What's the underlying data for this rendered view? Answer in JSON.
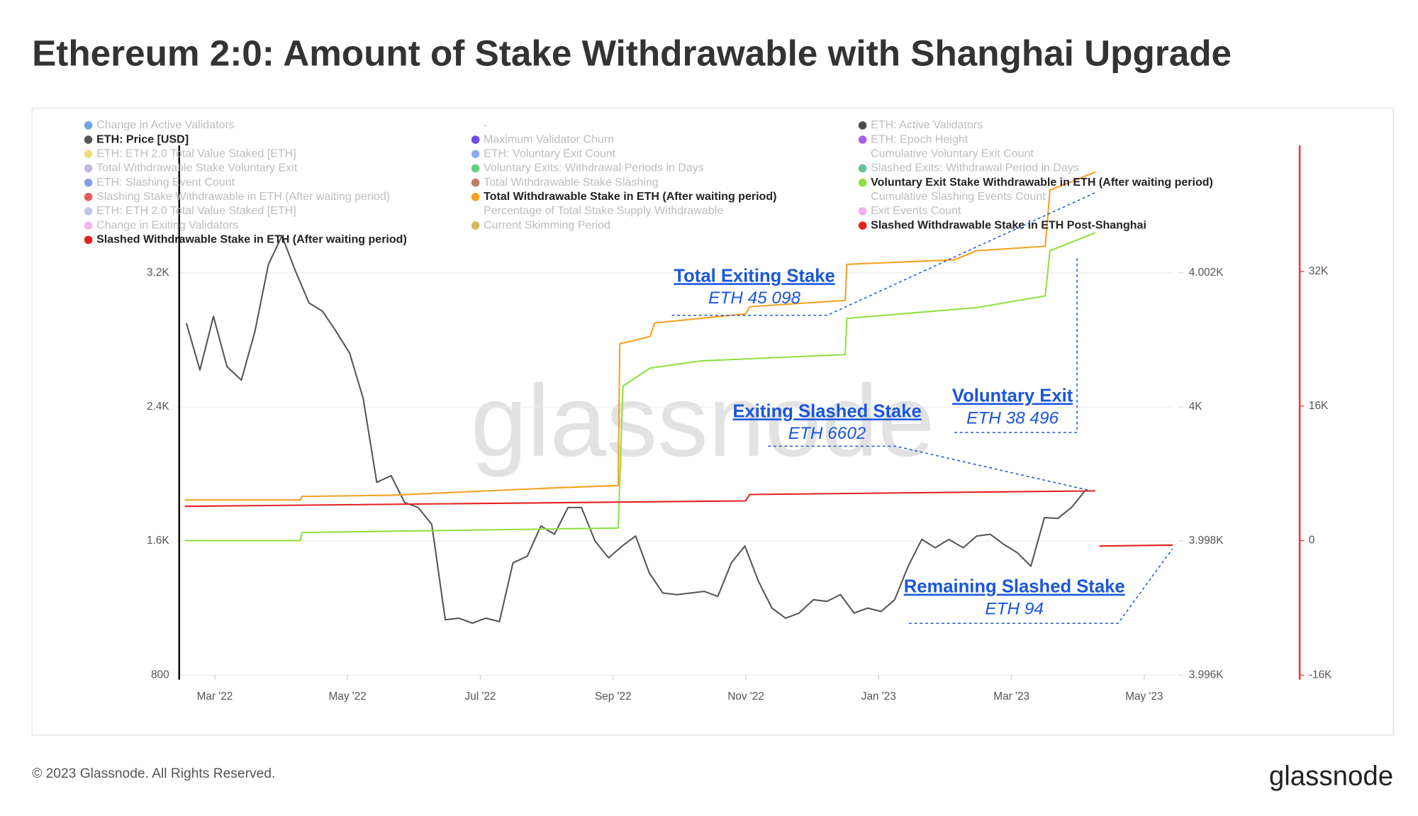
{
  "title": "Ethereum 2:0: Amount of Stake Withdrawable with Shanghai Upgrade",
  "footer": "© 2023 Glassnode. All Rights Reserved.",
  "logo": "glassnode",
  "chart_data": {
    "type": "line",
    "watermark": "glassnode",
    "xlim": [
      2022.122,
      2023.371
    ],
    "xticks": [
      {
        "value": 2022.1667,
        "label": "Mar '22"
      },
      {
        "value": 2022.3333,
        "label": "May '22"
      },
      {
        "value": 2022.5,
        "label": "Jul '22"
      },
      {
        "value": 2022.6667,
        "label": "Sep '22"
      },
      {
        "value": 2022.8333,
        "label": "Nov '22"
      },
      {
        "value": 2023.0,
        "label": "Jan '23"
      },
      {
        "value": 2023.1667,
        "label": "Mar '23"
      },
      {
        "value": 2023.3333,
        "label": "May '23"
      }
    ],
    "ylim": [
      800,
      3960
    ],
    "yticks": [
      800,
      {
        "value": 1600,
        "label": "1.6K"
      },
      {
        "value": 2400,
        "label": "2.4K"
      },
      {
        "value": 3200,
        "label": "3.2K"
      }
    ],
    "y3lim": [
      3996,
      4003.9
    ],
    "y3ticks": [
      {
        "value": 3996,
        "label": "3.996K"
      },
      {
        "value": 3998,
        "label": "3.998K"
      },
      {
        "value": 4000,
        "label": "4K"
      },
      {
        "value": 4002,
        "label": "4.002K"
      }
    ],
    "y2lim": [
      -16000,
      47000
    ],
    "y2ticks": [
      {
        "value": -16000,
        "label": "-16K"
      },
      0,
      {
        "value": 16000,
        "label": "16K"
      },
      {
        "value": 32000,
        "label": "32K"
      }
    ],
    "grid": true,
    "legend_position": "top",
    "series": [
      {
        "name": "Change in Active Validators",
        "color": "#3d86d8",
        "hidden": true
      },
      {
        "name": "-",
        "color": null,
        "hidden": true
      },
      {
        "name": "ETH: Active Validators",
        "color": "#111111",
        "hidden": true
      },
      {
        "name": "ETH: Price [USD]",
        "color": "#555555",
        "axis": "y",
        "x": [
          2022.131,
          2022.148,
          2022.165,
          2022.182,
          2022.2,
          2022.217,
          2022.234,
          2022.251,
          2022.268,
          2022.285,
          2022.302,
          2022.319,
          2022.336,
          2022.353,
          2022.37,
          2022.388,
          2022.405,
          2022.422,
          2022.439,
          2022.456,
          2022.473,
          2022.49,
          2022.507,
          2022.524,
          2022.541,
          2022.559,
          2022.576,
          2022.593,
          2022.61,
          2022.627,
          2022.644,
          2022.661,
          2022.678,
          2022.695,
          2022.712,
          2022.729,
          2022.747,
          2022.764,
          2022.781,
          2022.798,
          2022.815,
          2022.832,
          2022.849,
          2022.866,
          2022.883,
          2022.9,
          2022.918,
          2022.935,
          2022.952,
          2022.969,
          2022.986,
          2023.003,
          2023.02,
          2023.037,
          2023.054,
          2023.071,
          2023.088,
          2023.106,
          2023.123,
          2023.14,
          2023.157,
          2023.174,
          2023.191,
          2023.208,
          2023.225,
          2023.242,
          2023.259
        ],
        "values": [
          2900,
          2620,
          2940,
          2640,
          2560,
          2850,
          3250,
          3420,
          3210,
          3020,
          2970,
          2850,
          2720,
          2450,
          1950,
          1990,
          1830,
          1800,
          1700,
          1130,
          1140,
          1110,
          1140,
          1120,
          1470,
          1510,
          1690,
          1640,
          1800,
          1800,
          1600,
          1500,
          1570,
          1630,
          1410,
          1290,
          1280,
          1290,
          1300,
          1270,
          1470,
          1570,
          1360,
          1200,
          1140,
          1170,
          1250,
          1240,
          1280,
          1170,
          1200,
          1180,
          1250,
          1450,
          1610,
          1560,
          1610,
          1560,
          1630,
          1640,
          1580,
          1530,
          1450,
          1740,
          1735,
          1800,
          1900
        ]
      },
      {
        "name": "Maximum Validator Churn",
        "color": "#3a10e0",
        "hidden": true
      },
      {
        "name": "ETH: Epoch Height",
        "color": "#8a2be2",
        "hidden": true
      },
      {
        "name": "ETH: ETH 2.0 Total Value Staked [ETH]",
        "color": "#e8d44d",
        "hidden": true
      },
      {
        "name": "ETH: Voluntary Exit Count",
        "color": "#6a8ee8",
        "hidden": true
      },
      {
        "name": "Cumulative Voluntary Exit Count",
        "color": null,
        "hidden": true
      },
      {
        "name": "Total Withdrawable Stake Voluntary Exit",
        "color": "#b39ddb",
        "hidden": true
      },
      {
        "name": "Voluntary Exits: Withdrawal Periods in Days",
        "color": "#2ec050",
        "hidden": true
      },
      {
        "name": "Slashed Exits: Withdrawal Period in Days",
        "color": "#2eb070",
        "hidden": true
      },
      {
        "name": "ETH: Slashing Event Count",
        "color": "#5b7fe0",
        "hidden": true
      },
      {
        "name": "Total Withdrawable Stake Slashing",
        "color": "#a0522d",
        "hidden": true
      },
      {
        "name": "Voluntary Exit Stake Withdrawable in ETH (After waiting period)",
        "color": "#8fe040",
        "axis": "y2",
        "x": [
          2022.129,
          2022.274,
          2022.276,
          2022.673,
          2022.679,
          2022.713,
          2022.776,
          2022.958,
          2022.96,
          2023.123,
          2023.209,
          2023.215,
          2023.272
        ],
        "values": [
          0,
          0,
          970,
          1500,
          18370,
          20510,
          21370,
          22120,
          26420,
          27710,
          29100,
          34480,
          36620
        ]
      },
      {
        "name": "Slashing Stake Withdrawable in ETH (After waiting period)",
        "color": "#e02020",
        "hidden": true
      },
      {
        "name": "Total Withdrawable Stake in ETH (After waiting period)",
        "color": "#f5a020",
        "axis": "y2",
        "x": [
          2022.129,
          2022.274,
          2022.276,
          2022.388,
          2022.582,
          2022.673,
          2022.675,
          2022.713,
          2022.719,
          2022.833,
          2022.838,
          2022.958,
          2022.96,
          2023.095,
          2023.123,
          2023.209,
          2023.215,
          2023.272
        ],
        "values": [
          4830,
          4830,
          5260,
          5400,
          6230,
          6550,
          23400,
          24270,
          25880,
          26960,
          27820,
          28570,
          32860,
          33400,
          34480,
          35000,
          41670,
          43820
        ]
      },
      {
        "name": "Cumulative Slashing Events Count",
        "color": null,
        "hidden": true
      },
      {
        "name": "ETH: ETH 2.0 Total Value Staked [ETH]",
        "color": "#aab4e0",
        "hidden": true
      },
      {
        "name": "Percentage of Total Stake Supply Withdrawable",
        "color": null,
        "hidden": true
      },
      {
        "name": "Exit Events Count",
        "color": "#f090f0",
        "hidden": true
      },
      {
        "name": "Change in Exiting Validators",
        "color": "#f09ee0",
        "hidden": true
      },
      {
        "name": "Current Skimming Period",
        "color": "#c8a020",
        "hidden": true
      },
      {
        "name": "Slashed Withdrawable Stake in ETH Post-Shanghai",
        "color": "#e52020",
        "axis": "y2",
        "x": [
          2023.277,
          2023.369
        ],
        "values": [
          -640,
          -540
        ]
      },
      {
        "name": "Slashed Withdrawable Stake in ETH (After waiting period)",
        "color": "#e52020",
        "axis": "y2",
        "x": [
          2022.129,
          2022.833,
          2022.838,
          2023.272
        ],
        "values": [
          4080,
          4730,
          5480,
          5910
        ]
      }
    ],
    "annotations": [
      {
        "title": "Total Exiting Stake",
        "value": "ETH 45 098"
      },
      {
        "title": "Exiting Slashed Stake",
        "value": "ETH 6602"
      },
      {
        "title": "Voluntary Exit",
        "value": "ETH 38 496"
      },
      {
        "title": "Remaining Slashed Stake",
        "value": "ETH 94"
      }
    ]
  }
}
